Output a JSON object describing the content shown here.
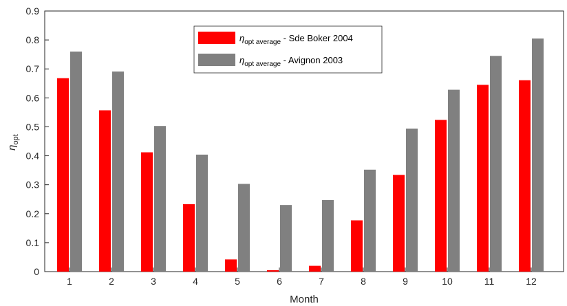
{
  "chart_data": {
    "type": "bar",
    "categories": [
      "1",
      "2",
      "3",
      "4",
      "5",
      "6",
      "7",
      "8",
      "9",
      "10",
      "11",
      "12"
    ],
    "series": [
      {
        "name_symbol": "η",
        "name_sub": "opt average",
        "name_rest": " - Sde Boker 2004",
        "color": "#ff0000",
        "values": [
          0.668,
          0.557,
          0.412,
          0.233,
          0.042,
          0.005,
          0.02,
          0.177,
          0.334,
          0.524,
          0.645,
          0.661
        ]
      },
      {
        "name_symbol": "η",
        "name_sub": "opt average",
        "name_rest": " - Avignon 2003",
        "color": "#808080",
        "values": [
          0.76,
          0.691,
          0.503,
          0.404,
          0.303,
          0.23,
          0.247,
          0.352,
          0.494,
          0.628,
          0.745,
          0.805
        ]
      }
    ],
    "xlabel": "Month",
    "ylabel_symbol": "η",
    "ylabel_sub": "opt",
    "ylim": [
      0,
      0.9
    ],
    "yticks": [
      "0",
      "0.1",
      "0.2",
      "0.3",
      "0.4",
      "0.5",
      "0.6",
      "0.7",
      "0.8",
      "0.9"
    ],
    "grid": false,
    "legend_position": "top-center"
  }
}
